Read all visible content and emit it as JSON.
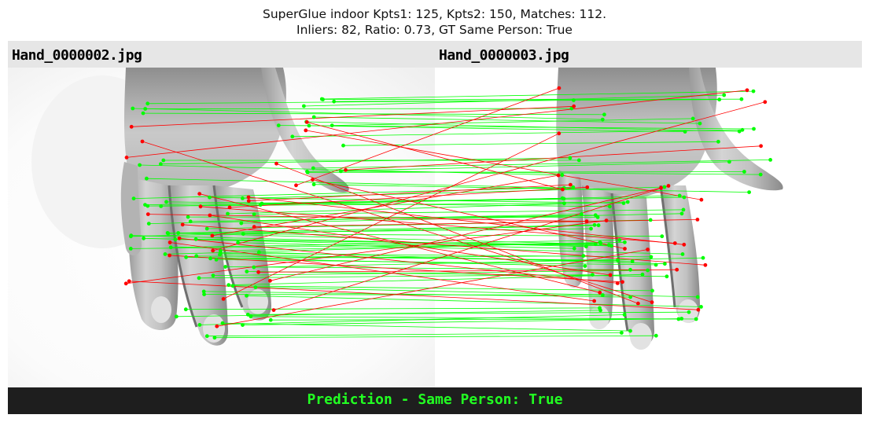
{
  "title": {
    "line1": "SuperGlue indoor Kpts1: 125, Kpts2: 150, Matches: 112.",
    "line2": "Inliers: 82, Ratio: 0.73, GT Same Person: True"
  },
  "images": {
    "left_filename": "Hand_0000002.jpg",
    "right_filename": "Hand_0000003.jpg"
  },
  "footer": {
    "prediction": "Prediction - Same Person: True"
  },
  "colors": {
    "inlier": "#00ff00",
    "outlier": "#ff0000",
    "header_strip": "#e6e6e6",
    "footer_bg": "#1e1e1e",
    "prediction_text": "#22ff22"
  },
  "stats": {
    "keypoints_left": 125,
    "keypoints_right": 150,
    "matches": 112,
    "inliers": 82,
    "ratio": 0.73
  }
}
